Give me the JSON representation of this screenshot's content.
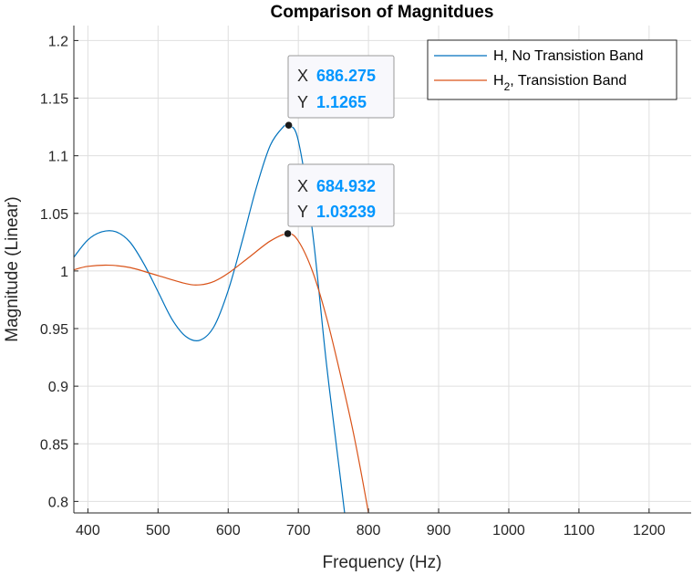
{
  "chart_data": {
    "type": "line",
    "title": "Comparison of Magnitdues",
    "xlabel": "Frequency (Hz)",
    "ylabel": "Magnitude (Linear)",
    "xlim": [
      380,
      1260
    ],
    "ylim": [
      0.79,
      1.213
    ],
    "xticks": [
      400,
      500,
      600,
      700,
      800,
      900,
      1000,
      1100,
      1200
    ],
    "yticks": [
      0.8,
      0.85,
      0.9,
      0.95,
      1,
      1.05,
      1.1,
      1.15,
      1.2
    ],
    "xtick_labels": [
      "400",
      "500",
      "600",
      "700",
      "800",
      "900",
      "1000",
      "1100",
      "1200"
    ],
    "ytick_labels": [
      "0.8",
      "0.85",
      "0.9",
      "0.95",
      "1",
      "1.05",
      "1.1",
      "1.15",
      "1.2"
    ],
    "grid": true,
    "legend_position": "top-right",
    "series": [
      {
        "name": "H, No Transistion Band",
        "legend_main": "H, No Transistion Band",
        "color": "#0072BD",
        "x": [
          380,
          400,
          420,
          440,
          460,
          480,
          500,
          520,
          540,
          560,
          580,
          600,
          620,
          640,
          660,
          680,
          686.275,
          700,
          720,
          740,
          760,
          770
        ],
        "y": [
          1.012,
          1.027,
          1.034,
          1.034,
          1.025,
          1.006,
          0.982,
          0.958,
          0.943,
          0.94,
          0.952,
          0.983,
          1.026,
          1.072,
          1.109,
          1.126,
          1.1265,
          1.113,
          1.035,
          0.92,
          0.82,
          0.77
        ]
      },
      {
        "name": "H2, Transistion Band",
        "legend_main": "H",
        "legend_sub": "2",
        "legend_rest": ", Transistion Band",
        "color": "#D95319",
        "x": [
          380,
          400,
          430,
          460,
          500,
          540,
          560,
          580,
          600,
          630,
          660,
          684.932,
          700,
          720,
          740,
          760,
          780,
          800,
          805
        ],
        "y": [
          1.001,
          1.004,
          1.005,
          1.003,
          0.996,
          0.989,
          0.988,
          0.991,
          0.998,
          1.012,
          1.026,
          1.03239,
          1.026,
          1.0,
          0.96,
          0.91,
          0.855,
          0.79,
          0.77
        ]
      }
    ],
    "datatips": [
      {
        "x_label": "X",
        "y_label": "Y",
        "x_value": "686.275",
        "y_value": "1.1265",
        "x": 686.275,
        "y": 1.1265
      },
      {
        "x_label": "X",
        "y_label": "Y",
        "x_value": "684.932",
        "y_value": "1.03239",
        "x": 684.932,
        "y": 1.03239
      }
    ]
  },
  "colors": {
    "datatip_value": "#0096FF",
    "grid": "#DFDFDF",
    "axis": "#262626"
  }
}
